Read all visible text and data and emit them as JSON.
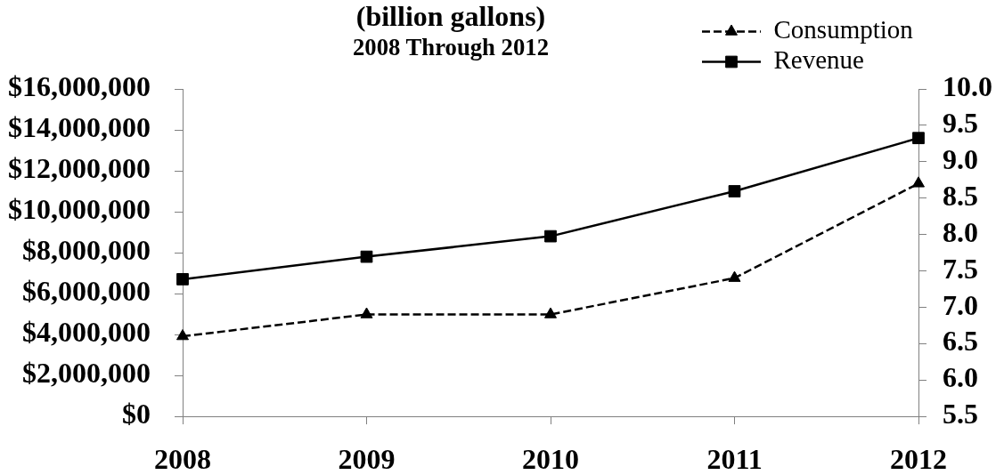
{
  "chart_data": {
    "type": "line",
    "title": "(billion gallons)",
    "subtitle": "2008 Through 2012",
    "categories": [
      "2008",
      "2009",
      "2010",
      "2011",
      "2012"
    ],
    "series": [
      {
        "name": "Consumption",
        "color": "#000000",
        "values": [
          6.6,
          6.9,
          6.9,
          7.4,
          8.7
        ],
        "axis": "y2",
        "marker": "triangle",
        "line_style": "dashed"
      },
      {
        "name": "Revenue",
        "color": "#000000",
        "values": [
          6700000,
          7800000,
          8800000,
          11000000,
          13600000
        ],
        "marker": "square",
        "line_style": "solid"
      }
    ],
    "ylim": [
      0,
      16000000
    ],
    "yticks": [
      {
        "value": 0,
        "label": "$0"
      },
      {
        "value": 2000000,
        "label": "$2,000,000"
      },
      {
        "value": 4000000,
        "label": "$4,000,000"
      },
      {
        "value": 6000000,
        "label": "$6,000,000"
      },
      {
        "value": 8000000,
        "label": "$8,000,000"
      },
      {
        "value": 10000000,
        "label": "$10,000,000"
      },
      {
        "value": 12000000,
        "label": "$12,000,000"
      },
      {
        "value": 14000000,
        "label": "$14,000,000"
      },
      {
        "value": 16000000,
        "label": "$16,000,000"
      }
    ],
    "y2lim": [
      5.5,
      10
    ],
    "y2ticks": [
      5.5,
      {
        "value": 6,
        "label": "6.0"
      },
      6.5,
      {
        "value": 7,
        "label": "7.0"
      },
      7.5,
      {
        "value": 8,
        "label": "8.0"
      },
      8.5,
      {
        "value": 9,
        "label": "9.0"
      },
      9.5,
      {
        "value": 10,
        "label": "10.0"
      }
    ],
    "legend": "top right"
  }
}
